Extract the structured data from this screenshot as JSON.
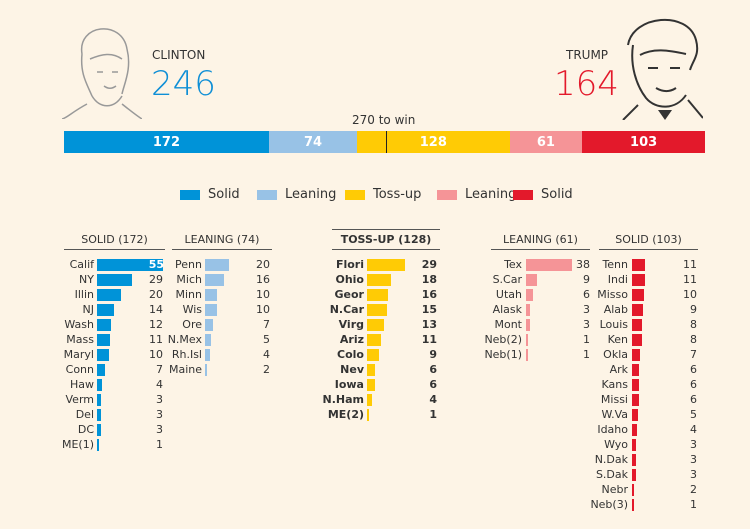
{
  "chart_data": {
    "type": "bar",
    "title": "270 to win",
    "candidates": [
      {
        "name": "CLINTON",
        "total": "246",
        "color": "#0f8fd6"
      },
      {
        "name": "TRUMP",
        "total": "164",
        "color": "#e3192b"
      }
    ],
    "summary": [
      {
        "label": "Solid",
        "value": 172,
        "color": "#0093d8"
      },
      {
        "label": "Leaning",
        "value": 74,
        "color": "#98c2e6"
      },
      {
        "label": "Toss-up",
        "value": 128,
        "color": "#ffcb05"
      },
      {
        "label": "Leaning",
        "value": 61,
        "color": "#f59497"
      },
      {
        "label": "Solid",
        "value": 103,
        "color": "#e3192b"
      }
    ],
    "threshold": 270,
    "total_votes": 538,
    "columns": [
      {
        "title": "SOLID (172)",
        "color": "#0093d8",
        "states": [
          [
            "Calif",
            55
          ],
          [
            "NY",
            29
          ],
          [
            "Illin",
            20
          ],
          [
            "NJ",
            14
          ],
          [
            "Wash",
            12
          ],
          [
            "Mass",
            11
          ],
          [
            "Maryl",
            10
          ],
          [
            "Conn",
            7
          ],
          [
            "Haw",
            4
          ],
          [
            "Verm",
            3
          ],
          [
            "Del",
            3
          ],
          [
            "DC",
            3
          ],
          [
            "ME(1)",
            1
          ]
        ]
      },
      {
        "title": "LEANING (74)",
        "color": "#98c2e6",
        "states": [
          [
            "Penn",
            20
          ],
          [
            "Mich",
            16
          ],
          [
            "Minn",
            10
          ],
          [
            "Wis",
            10
          ],
          [
            "Ore",
            7
          ],
          [
            "N.Mex",
            5
          ],
          [
            "Rh.Isl",
            4
          ],
          [
            "Maine",
            2
          ]
        ]
      },
      {
        "title": "TOSS-UP (128)",
        "color": "#ffcb05",
        "states": [
          [
            "Flori",
            29
          ],
          [
            "Ohio",
            18
          ],
          [
            "Geor",
            16
          ],
          [
            "N.Car",
            15
          ],
          [
            "Virg",
            13
          ],
          [
            "Ariz",
            11
          ],
          [
            "Colo",
            9
          ],
          [
            "Nev",
            6
          ],
          [
            "Iowa",
            6
          ],
          [
            "N.Ham",
            4
          ],
          [
            "ME(2)",
            1
          ]
        ]
      },
      {
        "title": "LEANING (61)",
        "color": "#f59497",
        "states": [
          [
            "Tex",
            38
          ],
          [
            "S.Car",
            9
          ],
          [
            "Utah",
            6
          ],
          [
            "Alask",
            3
          ],
          [
            "Mont",
            3
          ],
          [
            "Neb(2)",
            1
          ],
          [
            "Neb(1)",
            1
          ]
        ]
      },
      {
        "title": "SOLID (103)",
        "color": "#e3192b",
        "states": [
          [
            "Tenn",
            11
          ],
          [
            "Indi",
            11
          ],
          [
            "Misso",
            10
          ],
          [
            "Alab",
            9
          ],
          [
            "Louis",
            8
          ],
          [
            "Ken",
            8
          ],
          [
            "Okla",
            7
          ],
          [
            "Ark",
            6
          ],
          [
            "Kans",
            6
          ],
          [
            "Missi",
            6
          ],
          [
            "W.Va",
            5
          ],
          [
            "Idaho",
            4
          ],
          [
            "Wyo",
            3
          ],
          [
            "N.Dak",
            3
          ],
          [
            "S.Dak",
            3
          ],
          [
            "Nebr",
            2
          ],
          [
            "Neb(3)",
            1
          ]
        ]
      }
    ]
  }
}
